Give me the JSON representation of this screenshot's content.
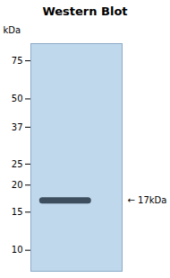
{
  "chart_data": {
    "type": "blot",
    "title": "Western Blot",
    "ylabel": "kDa",
    "values": [
      17
    ],
    "color": "#2a3a4a",
    "log": "y",
    "ylim": [
      8,
      90
    ],
    "yticks": [
      75,
      50,
      37,
      25,
      20,
      15,
      10
    ],
    "tick_labels": "y",
    "annotations": [
      {
        "text": "← 17kDa",
        "y": 17
      }
    ]
  }
}
